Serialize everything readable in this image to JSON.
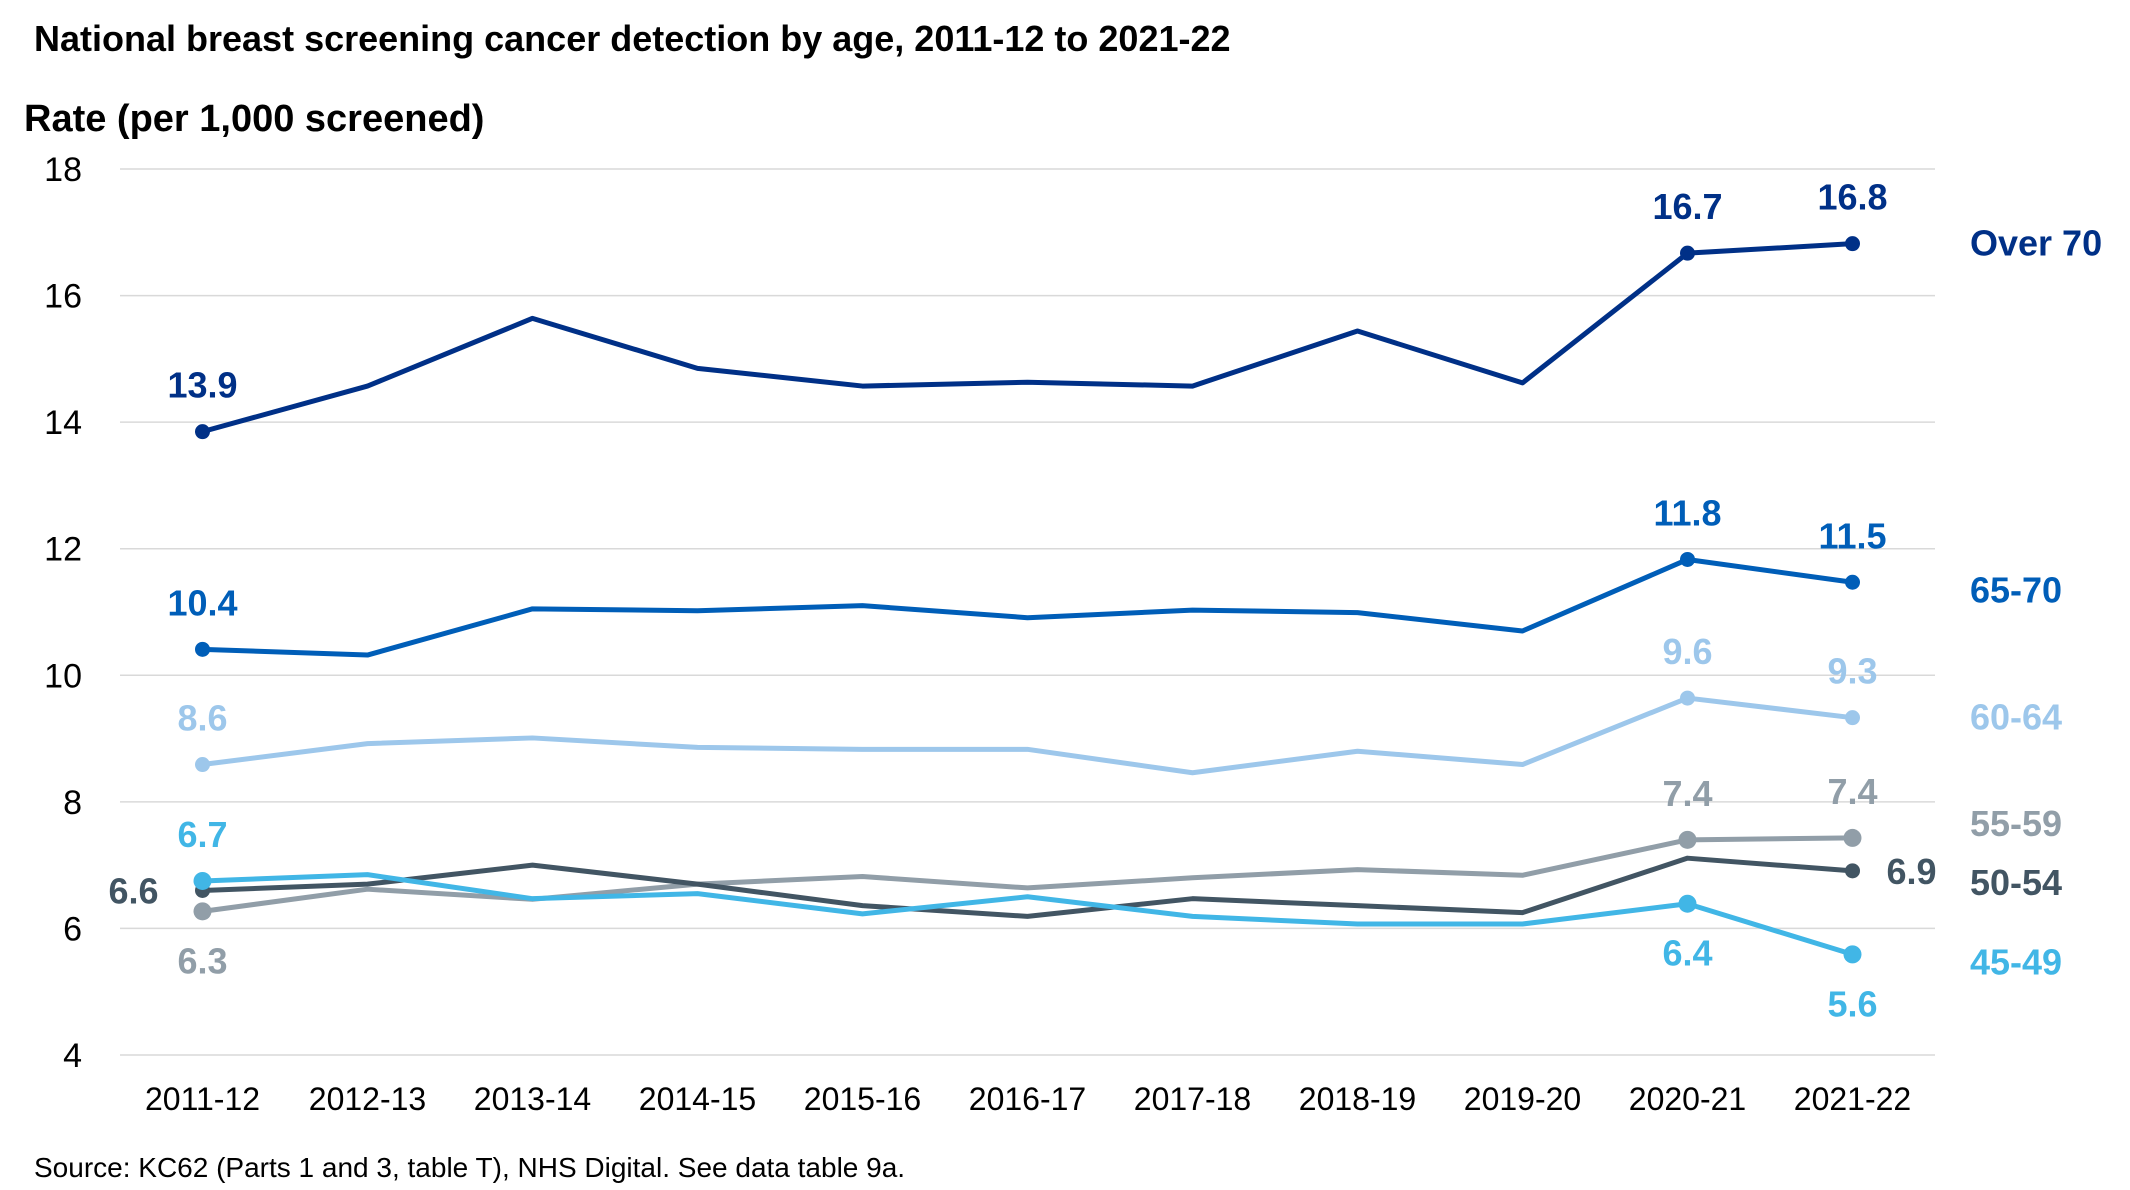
{
  "chart_data": {
    "type": "line",
    "title": "National breast screening cancer detection by age, 2011-12 to 2021-22",
    "ylabel": "Rate (per 1,000 screened)",
    "xlabel": "",
    "source": "Source: KC62 (Parts 1 and 3, table T), NHS Digital. See data table 9a.",
    "ylim": [
      4,
      18
    ],
    "yticks": [
      4,
      6,
      8,
      10,
      12,
      14,
      16,
      18
    ],
    "grid": true,
    "legend": "direct-labels-right",
    "categories": [
      "2011-12",
      "2012-13",
      "2013-14",
      "2014-15",
      "2015-16",
      "2016-17",
      "2017-18",
      "2018-19",
      "2019-20",
      "2020-21",
      "2021-22"
    ],
    "series": [
      {
        "name": "Over 70",
        "color": "#003087",
        "values": [
          13.85,
          14.57,
          15.64,
          14.85,
          14.57,
          14.63,
          14.57,
          15.44,
          14.62,
          16.67,
          16.82
        ],
        "labels": [
          {
            "index": 0,
            "text": "13.9",
            "pos": "above"
          },
          {
            "index": 9,
            "text": "16.7",
            "pos": "above"
          },
          {
            "index": 10,
            "text": "16.8",
            "pos": "above"
          }
        ]
      },
      {
        "name": "65-70",
        "color": "#005EB8",
        "values": [
          10.41,
          10.32,
          11.05,
          11.02,
          11.1,
          10.91,
          11.03,
          10.99,
          10.7,
          11.83,
          11.47
        ],
        "labels": [
          {
            "index": 0,
            "text": "10.4",
            "pos": "above"
          },
          {
            "index": 9,
            "text": "11.8",
            "pos": "above"
          },
          {
            "index": 10,
            "text": "11.5",
            "pos": "above"
          }
        ]
      },
      {
        "name": "60-64",
        "color": "#9DC7EB",
        "values": [
          8.59,
          8.92,
          9.01,
          8.86,
          8.83,
          8.83,
          8.46,
          8.8,
          8.59,
          9.64,
          9.33
        ],
        "labels": [
          {
            "index": 0,
            "text": "8.6",
            "pos": "above"
          },
          {
            "index": 9,
            "text": "9.6",
            "pos": "above"
          },
          {
            "index": 10,
            "text": "9.3",
            "pos": "above"
          }
        ]
      },
      {
        "name": "55-59",
        "color": "#919EA8",
        "values": [
          6.27,
          6.62,
          6.46,
          6.7,
          6.82,
          6.64,
          6.8,
          6.93,
          6.84,
          7.4,
          7.43
        ],
        "labels": [
          {
            "index": 0,
            "text": "6.3",
            "pos": "below"
          },
          {
            "index": 9,
            "text": "7.4",
            "pos": "above"
          },
          {
            "index": 10,
            "text": "7.4",
            "pos": "above"
          }
        ]
      },
      {
        "name": "50-54",
        "color": "#425563",
        "values": [
          6.6,
          6.7,
          7.0,
          6.7,
          6.36,
          6.19,
          6.47,
          6.36,
          6.25,
          7.11,
          6.91
        ],
        "labels": [
          {
            "index": 0,
            "text": "6.6",
            "pos": "left"
          },
          {
            "index": 10,
            "text": "6.9",
            "pos": "right"
          }
        ]
      },
      {
        "name": "45-49",
        "color": "#41B6E6",
        "values": [
          6.75,
          6.85,
          6.47,
          6.55,
          6.23,
          6.5,
          6.19,
          6.07,
          6.07,
          6.39,
          5.59
        ],
        "labels": [
          {
            "index": 0,
            "text": "6.7",
            "pos": "above"
          },
          {
            "index": 9,
            "text": "6.4",
            "pos": "below"
          },
          {
            "index": 10,
            "text": "5.6",
            "pos": "below"
          }
        ]
      }
    ]
  }
}
